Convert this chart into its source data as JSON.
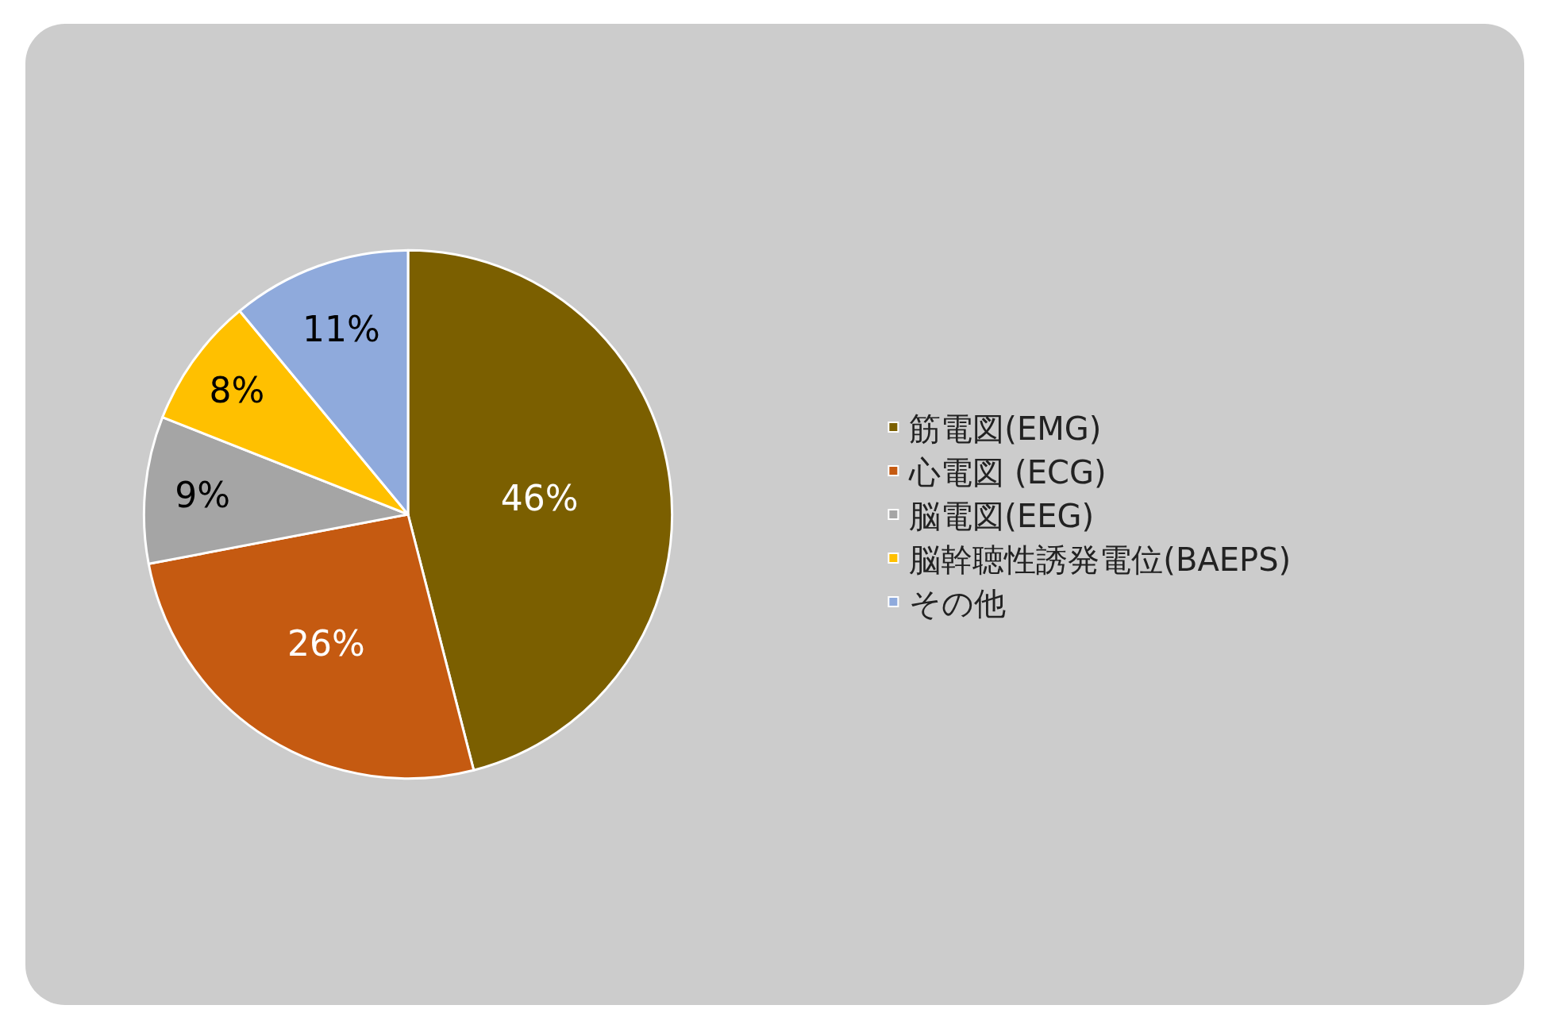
{
  "chart_data": {
    "type": "pie",
    "categories": [
      "筋電図(EMG)",
      "心電図 (ECG)",
      "脳電図(EEG)",
      "脳幹聴性誘発電位(BAEPS)",
      "その他"
    ],
    "values": [
      46,
      26,
      9,
      8,
      11
    ],
    "colors": [
      "#7b5f00",
      "#c55a11",
      "#a5a5a5",
      "#ffc000",
      "#8faadc"
    ],
    "value_labels": [
      "46%",
      "26%",
      "9%",
      "8%",
      "11%"
    ],
    "legend": "right"
  }
}
